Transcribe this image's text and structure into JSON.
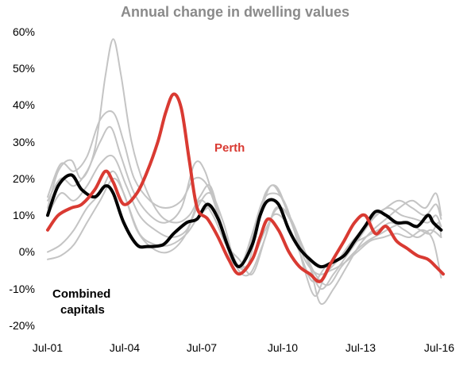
{
  "chart_data": {
    "type": "line",
    "title": "Annual change in dwelling values",
    "xlabel": "",
    "ylabel": "",
    "x_range": [
      2001.5,
      2016.58
    ],
    "ylim": [
      -20,
      60
    ],
    "y_ticks": [
      "60%",
      "50%",
      "40%",
      "30%",
      "20%",
      "10%",
      "0%",
      "-10%",
      "-20%"
    ],
    "y_tick_values": [
      60,
      50,
      40,
      30,
      20,
      10,
      0,
      -10,
      -20
    ],
    "x_ticks": [
      "Jul-01",
      "Jul-04",
      "Jul-07",
      "Jul-10",
      "Jul-13",
      "Jul-16"
    ],
    "x_tick_values": [
      2001.5,
      2004.5,
      2007.5,
      2010.5,
      2013.5,
      2016.5
    ],
    "grid": false,
    "annotations": [
      {
        "text": "Perth",
        "color": "#d93a32"
      },
      {
        "text": "Combined",
        "color": "#000000"
      },
      {
        "text": "capitals",
        "color": "#000000"
      }
    ],
    "colors": {
      "perth": "#d93a32",
      "combined": "#000000",
      "others": "#c4c4c4"
    },
    "series": [
      {
        "id": "combined",
        "label_ref": "Combined capitals",
        "color": "#000000",
        "width": 4,
        "x": [
          2001.5,
          2001.9,
          2002.4,
          2002.8,
          2003.3,
          2003.7,
          2004.0,
          2004.4,
          2004.9,
          2005.3,
          2005.9,
          2006.3,
          2006.8,
          2007.2,
          2007.6,
          2008.0,
          2008.4,
          2008.8,
          2009.3,
          2009.6,
          2009.9,
          2010.3,
          2010.7,
          2011.1,
          2011.5,
          2011.9,
          2012.3,
          2012.8,
          2013.2,
          2013.6,
          2014.0,
          2014.4,
          2014.8,
          2015.2,
          2015.6,
          2016.0,
          2016.2,
          2016.5
        ],
        "y": [
          10,
          18,
          21,
          17,
          15,
          18,
          16,
          8,
          2,
          1.5,
          2,
          5,
          8,
          9,
          13,
          9,
          1,
          -4,
          2,
          10,
          14,
          13,
          6,
          1,
          -2,
          -4,
          -3,
          -1,
          3,
          7,
          11,
          10,
          8,
          8,
          7,
          10,
          8,
          6
        ]
      },
      {
        "id": "perth",
        "label_ref": "Perth",
        "color": "#d93a32",
        "width": 4,
        "x": [
          2001.5,
          2001.9,
          2002.4,
          2002.8,
          2003.3,
          2003.7,
          2004.0,
          2004.4,
          2004.9,
          2005.3,
          2005.7,
          2006.0,
          2006.3,
          2006.6,
          2006.9,
          2007.2,
          2007.6,
          2008.0,
          2008.4,
          2008.8,
          2009.3,
          2009.6,
          2009.9,
          2010.3,
          2010.7,
          2011.1,
          2011.5,
          2011.9,
          2012.3,
          2012.8,
          2013.2,
          2013.6,
          2014.0,
          2014.4,
          2014.8,
          2015.2,
          2015.6,
          2016.0,
          2016.3,
          2016.58
        ],
        "y": [
          6,
          10,
          12,
          13,
          17,
          22,
          19,
          13,
          16,
          22,
          30,
          38,
          43,
          39,
          25,
          12,
          9,
          4,
          -2,
          -6,
          -2,
          4,
          9,
          6,
          0,
          -4,
          -6,
          -8,
          -3,
          3,
          8,
          10,
          5,
          7,
          3,
          1,
          -1,
          -2,
          -4,
          -6
        ]
      },
      {
        "id": "city-a",
        "color": "#c4c4c4",
        "width": 2,
        "x": [
          2001.5,
          2001.9,
          2002.4,
          2002.8,
          2003.3,
          2003.7,
          2004.0,
          2004.3,
          2004.7,
          2005.2,
          2005.8,
          2006.4,
          2006.9,
          2007.3,
          2007.7,
          2008.1,
          2008.5,
          2008.9,
          2009.3,
          2009.7,
          2010.1,
          2010.5,
          2010.9,
          2011.3,
          2011.7,
          2012.1,
          2012.6,
          2013.0,
          2013.5,
          2014.0,
          2014.5,
          2015.0,
          2015.5,
          2016.0,
          2016.3,
          2016.5
        ],
        "y": [
          12,
          22,
          25,
          20,
          28,
          48,
          58,
          48,
          30,
          18,
          10,
          8,
          10,
          15,
          18,
          8,
          -2,
          -3,
          5,
          14,
          16,
          14,
          6,
          -5,
          -12,
          -6,
          -2,
          2,
          6,
          10,
          12,
          10,
          9,
          8,
          10,
          7
        ]
      },
      {
        "id": "city-b",
        "color": "#c4c4c4",
        "width": 2,
        "x": [
          2001.5,
          2002.0,
          2002.5,
          2003.0,
          2003.5,
          2004.0,
          2004.4,
          2004.8,
          2005.4,
          2006.0,
          2006.6,
          2007.1,
          2007.6,
          2008.1,
          2008.6,
          2009.1,
          2009.6,
          2010.0,
          2010.4,
          2010.9,
          2011.4,
          2011.9,
          2012.4,
          2012.9,
          2013.4,
          2013.9,
          2014.4,
          2014.9,
          2015.4,
          2015.9,
          2016.3,
          2016.5
        ],
        "y": [
          15,
          24,
          22,
          26,
          36,
          38,
          30,
          20,
          14,
          12,
          14,
          20,
          18,
          8,
          -2,
          -4,
          10,
          18,
          15,
          6,
          -2,
          -10,
          -6,
          -1,
          4,
          9,
          12,
          14,
          12,
          10,
          13,
          9
        ]
      },
      {
        "id": "city-c",
        "color": "#c4c4c4",
        "width": 2,
        "x": [
          2001.5,
          2002.0,
          2002.5,
          2003.0,
          2003.5,
          2003.9,
          2004.3,
          2004.8,
          2005.4,
          2006.0,
          2006.6,
          2007.1,
          2007.5,
          2008.0,
          2008.5,
          2008.9,
          2009.4,
          2009.8,
          2010.2,
          2010.6,
          2011.0,
          2011.5,
          2011.9,
          2012.4,
          2012.9,
          2013.4,
          2013.9,
          2014.4,
          2014.9,
          2015.4,
          2015.9,
          2016.3,
          2016.5
        ],
        "y": [
          14,
          20,
          18,
          22,
          30,
          34,
          26,
          16,
          10,
          8,
          12,
          24,
          22,
          10,
          0,
          -4,
          6,
          16,
          18,
          12,
          4,
          -4,
          -14,
          -10,
          -4,
          2,
          6,
          9,
          12,
          14,
          12,
          16,
          10
        ]
      },
      {
        "id": "city-d",
        "color": "#c4c4c4",
        "width": 2,
        "x": [
          2001.5,
          2002.0,
          2002.5,
          2003.0,
          2003.5,
          2004.0,
          2004.5,
          2005.0,
          2005.6,
          2006.2,
          2006.8,
          2007.3,
          2007.8,
          2008.3,
          2008.8,
          2009.3,
          2009.8,
          2010.2,
          2010.7,
          2011.2,
          2011.7,
          2012.2,
          2012.7,
          2013.2,
          2013.7,
          2014.2,
          2014.7,
          2015.2,
          2015.7,
          2016.1,
          2016.4,
          2016.5
        ],
        "y": [
          10,
          16,
          14,
          18,
          24,
          26,
          18,
          10,
          6,
          4,
          6,
          14,
          10,
          2,
          -2,
          -6,
          4,
          12,
          10,
          2,
          -6,
          -9,
          -4,
          0,
          3,
          5,
          7,
          8,
          6,
          5,
          8,
          4
        ]
      },
      {
        "id": "city-e",
        "color": "#c4c4c4",
        "width": 2,
        "x": [
          2001.5,
          2002.0,
          2002.5,
          2003.0,
          2003.5,
          2004.0,
          2004.4,
          2004.9,
          2005.5,
          2006.1,
          2006.7,
          2007.2,
          2007.7,
          2008.2,
          2008.7,
          2009.2,
          2009.7,
          2010.1,
          2010.6,
          2011.1,
          2011.6,
          2012.1,
          2012.6,
          2013.1,
          2013.6,
          2014.1,
          2014.6,
          2015.1,
          2015.6,
          2016.1,
          2016.5
        ],
        "y": [
          -2,
          -1,
          2,
          8,
          14,
          20,
          16,
          6,
          1,
          0,
          4,
          12,
          16,
          8,
          -4,
          -6,
          2,
          10,
          8,
          0,
          -8,
          -4,
          -2,
          2,
          4,
          6,
          8,
          6,
          4,
          6,
          4
        ]
      },
      {
        "id": "city-f",
        "color": "#c4c4c4",
        "width": 2,
        "x": [
          2001.5,
          2002.0,
          2002.5,
          2003.0,
          2003.5,
          2004.0,
          2004.5,
          2005.0,
          2005.6,
          2006.2,
          2006.8,
          2007.3,
          2007.8,
          2008.3,
          2008.8,
          2009.3,
          2009.8,
          2010.3,
          2010.8,
          2011.3,
          2011.8,
          2012.3,
          2012.8,
          2013.3,
          2013.8,
          2014.3,
          2014.8,
          2015.3,
          2015.8,
          2016.2,
          2016.5
        ],
        "y": [
          0,
          2,
          6,
          12,
          16,
          22,
          14,
          5,
          2,
          2,
          5,
          10,
          12,
          4,
          -4,
          -2,
          6,
          12,
          8,
          -2,
          -6,
          -5,
          -3,
          0,
          3,
          4,
          5,
          4,
          6,
          3,
          -7
        ]
      }
    ]
  }
}
